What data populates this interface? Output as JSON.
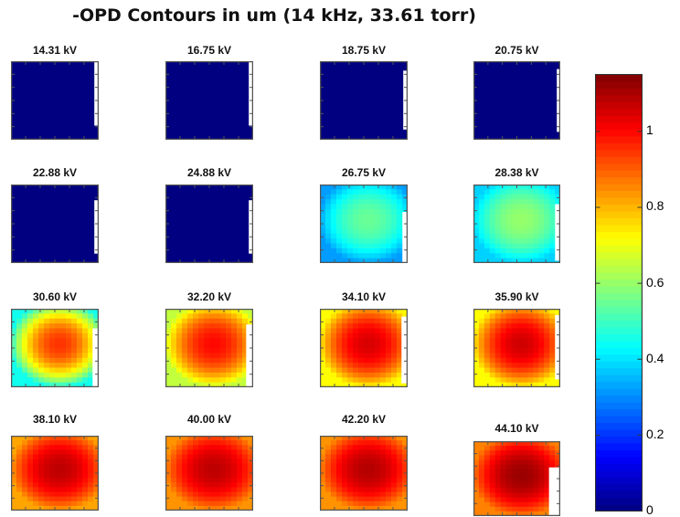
{
  "title": "-OPD Contours in um (14 kHz, 33.61 torr)",
  "colormap": "jet",
  "colors": {
    "background": "#ffffff",
    "axes_edge": "#555555",
    "gap": "#ffffff"
  },
  "chart_data": {
    "type": "heatmap",
    "layout": "4x4 small multiples",
    "title": "-OPD Contours in um (14 kHz, 33.61 torr)",
    "clim": [
      0,
      1.15
    ],
    "colorbar": {
      "ticks": [
        0,
        0.2,
        0.4,
        0.6,
        0.8,
        1
      ],
      "tick_labels": [
        "0",
        "0.2",
        "0.4",
        "0.6",
        "0.8",
        "1"
      ]
    },
    "panels": [
      {
        "title": "14.31 kV",
        "peak": 0.0,
        "edge": 0.0
      },
      {
        "title": "16.75 kV",
        "peak": 0.0,
        "edge": 0.0
      },
      {
        "title": "18.75 kV",
        "peak": 0.0,
        "edge": 0.0
      },
      {
        "title": "20.75 kV",
        "peak": 0.0,
        "edge": 0.0
      },
      {
        "title": "22.88 kV",
        "peak": 0.0,
        "edge": 0.0
      },
      {
        "title": "24.88 kV",
        "peak": 0.0,
        "edge": 0.0
      },
      {
        "title": "26.75 kV",
        "peak": 0.55,
        "edge": 0.32
      },
      {
        "title": "28.38 kV",
        "peak": 0.6,
        "edge": 0.38
      },
      {
        "title": "30.60 kV",
        "peak": 0.95,
        "edge": 0.45
      },
      {
        "title": "32.20 kV",
        "peak": 1.0,
        "edge": 0.65
      },
      {
        "title": "34.10 kV",
        "peak": 1.05,
        "edge": 0.72
      },
      {
        "title": "35.90 kV",
        "peak": 1.06,
        "edge": 0.72
      },
      {
        "title": "38.10 kV",
        "peak": 1.08,
        "edge": 0.82
      },
      {
        "title": "40.00 kV",
        "peak": 1.08,
        "edge": 0.84
      },
      {
        "title": "42.20 kV",
        "peak": 1.09,
        "edge": 0.84
      },
      {
        "title": "44.10 kV",
        "peak": 1.12,
        "edge": 0.86
      }
    ]
  }
}
